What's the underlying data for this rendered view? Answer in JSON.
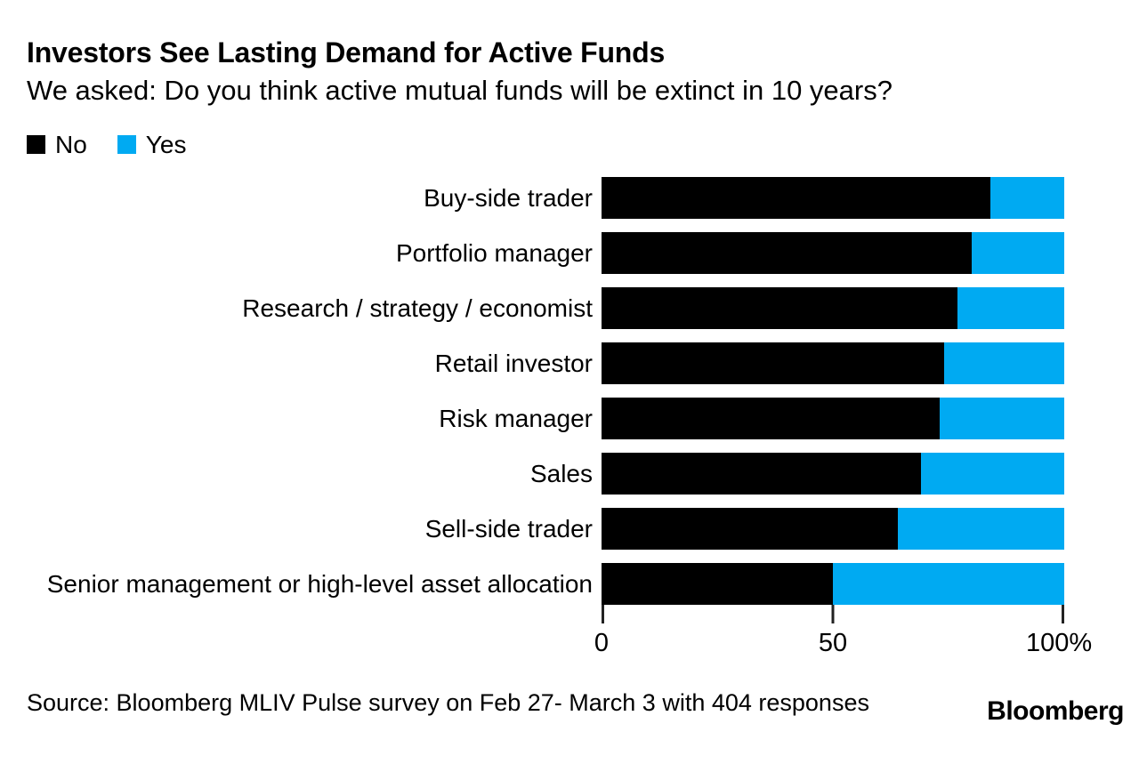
{
  "header": {
    "title": "Investors See Lasting Demand for Active Funds",
    "subtitle": "We asked: Do you think active mutual funds will be extinct in 10 years?"
  },
  "legend": {
    "items": [
      {
        "label": "No",
        "color": "#000000"
      },
      {
        "label": "Yes",
        "color": "#00aaf2"
      }
    ]
  },
  "chart_data": {
    "type": "bar",
    "orientation": "horizontal",
    "stacked": true,
    "unit": "percent",
    "title": "Investors See Lasting Demand for Active Funds",
    "xlabel": "",
    "ylabel": "",
    "xlim": [
      0,
      100
    ],
    "grid": false,
    "legend_position": "top-left",
    "categories": [
      "Buy-side trader",
      "Portfolio manager",
      "Research / strategy / economist",
      "Retail investor",
      "Risk manager",
      "Sales",
      "Sell-side trader",
      "Senior management or high-level asset allocation"
    ],
    "series": [
      {
        "name": "No",
        "color": "#000000",
        "values": [
          84,
          80,
          77,
          74,
          73,
          69,
          64,
          50
        ]
      },
      {
        "name": "Yes",
        "color": "#00aaf2",
        "values": [
          16,
          20,
          23,
          26,
          27,
          31,
          36,
          50
        ]
      }
    ],
    "x_axis": {
      "ticks": [
        "0",
        "50",
        "100%"
      ],
      "tick_values": [
        0,
        50,
        100
      ]
    }
  },
  "footer": {
    "source": "Source: Bloomberg MLIV Pulse survey on Feb 27- March 3 with 404 responses",
    "brand": "Bloomberg"
  }
}
